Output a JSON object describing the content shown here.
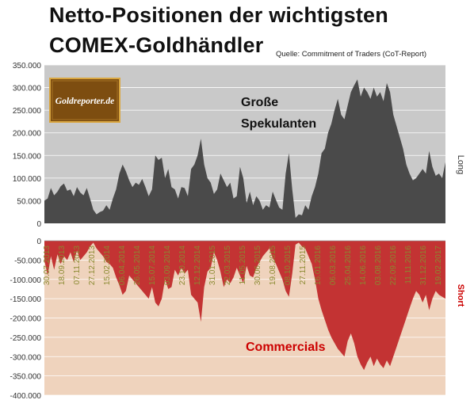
{
  "title_line1": "Netto-Positionen der wichtigsten",
  "title_line2": "COMEX-Goldhändler",
  "source": "Quelle: Commitment of Traders (CoT-Report)",
  "logo_text": "Goldreporter.de",
  "colors": {
    "top_bg": "#c9c9c9",
    "bottom_bg": "#efd3bd",
    "speculators": "#4a4a4a",
    "commercials": "#c33333",
    "commercials_label": "#cc0000",
    "date_labels": "#8a8a30",
    "logo_bg": "#7d4d10",
    "logo_border": "#d9a640"
  },
  "chart_data": [
    {
      "type": "area",
      "panel": "top",
      "series": [
        {
          "name": "Große Spekulanten",
          "values": [
            50,
            55,
            78,
            62,
            70,
            82,
            88,
            72,
            75,
            60,
            80,
            68,
            62,
            78,
            55,
            30,
            20,
            25,
            28,
            40,
            30,
            55,
            75,
            110,
            130,
            115,
            95,
            80,
            90,
            85,
            98,
            80,
            60,
            75,
            150,
            140,
            145,
            100,
            120,
            80,
            75,
            55,
            80,
            78,
            60,
            120,
            130,
            150,
            187,
            130,
            100,
            90,
            65,
            75,
            110,
            95,
            80,
            90,
            55,
            60,
            125,
            100,
            45,
            70,
            40,
            60,
            50,
            30,
            40,
            35,
            70,
            52,
            35,
            30,
            110,
            155,
            75,
            12,
            20,
            18,
            40,
            30,
            60,
            80,
            110,
            155,
            165,
            200,
            220,
            250,
            275,
            240,
            230,
            260,
            290,
            305,
            318,
            280,
            300,
            290,
            275,
            300,
            280,
            290,
            270,
            310,
            290,
            240,
            215,
            190,
            165,
            130,
            110,
            95,
            100,
            110,
            120,
            110,
            160,
            125,
            105,
            110,
            100,
            135
          ]
        }
      ],
      "label": "Große\nSpekulanten",
      "side_label": "Long",
      "ylim": [
        0,
        350000
      ],
      "yticks": [
        "350.000",
        "300.000",
        "250.000",
        "200.000",
        "150.000",
        "100.000",
        "50.000",
        "0"
      ]
    },
    {
      "type": "area",
      "panel": "bottom",
      "series": [
        {
          "name": "Commercials",
          "values": [
            -50,
            -90,
            -40,
            -75,
            -35,
            -60,
            -40,
            -50,
            -30,
            -55,
            -25,
            -50,
            -40,
            -30,
            -15,
            -5,
            -20,
            -30,
            -40,
            -55,
            -60,
            -70,
            -95,
            -115,
            -140,
            -130,
            -90,
            -100,
            -110,
            -120,
            -130,
            -140,
            -150,
            -120,
            -160,
            -170,
            -150,
            -100,
            -125,
            -120,
            -75,
            -90,
            -70,
            -85,
            -75,
            -140,
            -150,
            -160,
            -210,
            -120,
            -80,
            -70,
            -30,
            -50,
            -80,
            -120,
            -100,
            -110,
            -95,
            -70,
            -90,
            -110,
            -65,
            -90,
            -95,
            -70,
            -55,
            -40,
            -30,
            -20,
            -45,
            -60,
            -80,
            -100,
            -130,
            -145,
            -85,
            -10,
            -5,
            -15,
            -20,
            -40,
            -60,
            -100,
            -150,
            -180,
            -205,
            -230,
            -250,
            -265,
            -280,
            -290,
            -300,
            -260,
            -240,
            -265,
            -300,
            -320,
            -335,
            -315,
            -300,
            -325,
            -305,
            -320,
            -330,
            -310,
            -325,
            -300,
            -275,
            -250,
            -225,
            -200,
            -175,
            -150,
            -130,
            -140,
            -160,
            -140,
            -180,
            -150,
            -130,
            -140,
            -145,
            -150
          ]
        }
      ],
      "label": "Commercials",
      "side_label": "Short",
      "ylim": [
        -400000,
        0
      ],
      "yticks": [
        "0",
        "-50.000",
        "-100.000",
        "-150.000",
        "-200.000",
        "-250.000",
        "-300.000",
        "-350.000",
        "-400.000"
      ],
      "xticks": [
        "30.07.2013",
        "18.09.2013",
        "07.11.2013",
        "27.12.2013",
        "15.02.2014",
        "06.04.2014",
        "26.05.2014",
        "15.07.2014",
        "03.09.2014",
        "23.10.2014",
        "12.12.2014",
        "31.01.2015",
        "22.03.2015",
        "11.05.2015",
        "30.06.2015",
        "19.08.2015",
        "08.10.2015",
        "27.11.2015",
        "16.01.2016",
        "06.03.2016",
        "25.04.2016",
        "14.06.2016",
        "03.08.2016",
        "22.09.2016",
        "11.11.2016",
        "31.12.2016",
        "19.02.2017"
      ]
    }
  ]
}
